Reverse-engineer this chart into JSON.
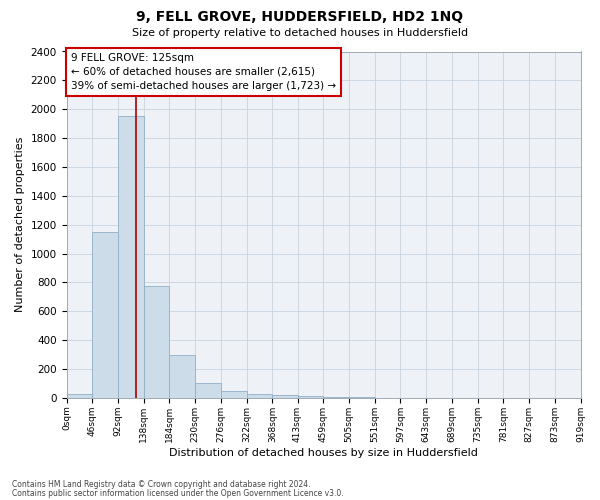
{
  "title": "9, FELL GROVE, HUDDERSFIELD, HD2 1NQ",
  "subtitle": "Size of property relative to detached houses in Huddersfield",
  "xlabel": "Distribution of detached houses by size in Huddersfield",
  "ylabel": "Number of detached properties",
  "footnote1": "Contains HM Land Registry data © Crown copyright and database right 2024.",
  "footnote2": "Contains public sector information licensed under the Open Government Licence v3.0.",
  "annotation_line1": "9 FELL GROVE: 125sqm",
  "annotation_line2": "← 60% of detached houses are smaller (2,615)",
  "annotation_line3": "39% of semi-detached houses are larger (1,723) →",
  "property_size": 125,
  "bar_edges": [
    0,
    46,
    92,
    138,
    184,
    230,
    276,
    322,
    368,
    413,
    459,
    505,
    551,
    597,
    643,
    689,
    735,
    781,
    827,
    873,
    919
  ],
  "bar_heights": [
    30,
    1150,
    1950,
    775,
    300,
    100,
    45,
    30,
    18,
    12,
    5,
    3,
    2,
    1,
    1,
    0,
    0,
    0,
    0,
    0
  ],
  "bar_color": "#ccdce8",
  "bar_edge_color": "#90b0c8",
  "ref_line_color": "#aa0000",
  "annotation_box_color": "#cc0000",
  "grid_color": "#c8d4de",
  "bg_color": "#eef2f7",
  "ylim": [
    0,
    2400
  ],
  "xlim": [
    0,
    919
  ],
  "xtick_labels": [
    "0sqm",
    "46sqm",
    "92sqm",
    "138sqm",
    "184sqm",
    "230sqm",
    "276sqm",
    "322sqm",
    "368sqm",
    "413sqm",
    "459sqm",
    "505sqm",
    "551sqm",
    "597sqm",
    "643sqm",
    "689sqm",
    "735sqm",
    "781sqm",
    "827sqm",
    "873sqm",
    "919sqm"
  ],
  "ytick_values": [
    0,
    200,
    400,
    600,
    800,
    1000,
    1200,
    1400,
    1600,
    1800,
    2000,
    2200,
    2400
  ],
  "title_fontsize": 10,
  "subtitle_fontsize": 8,
  "xlabel_fontsize": 8,
  "ylabel_fontsize": 8
}
